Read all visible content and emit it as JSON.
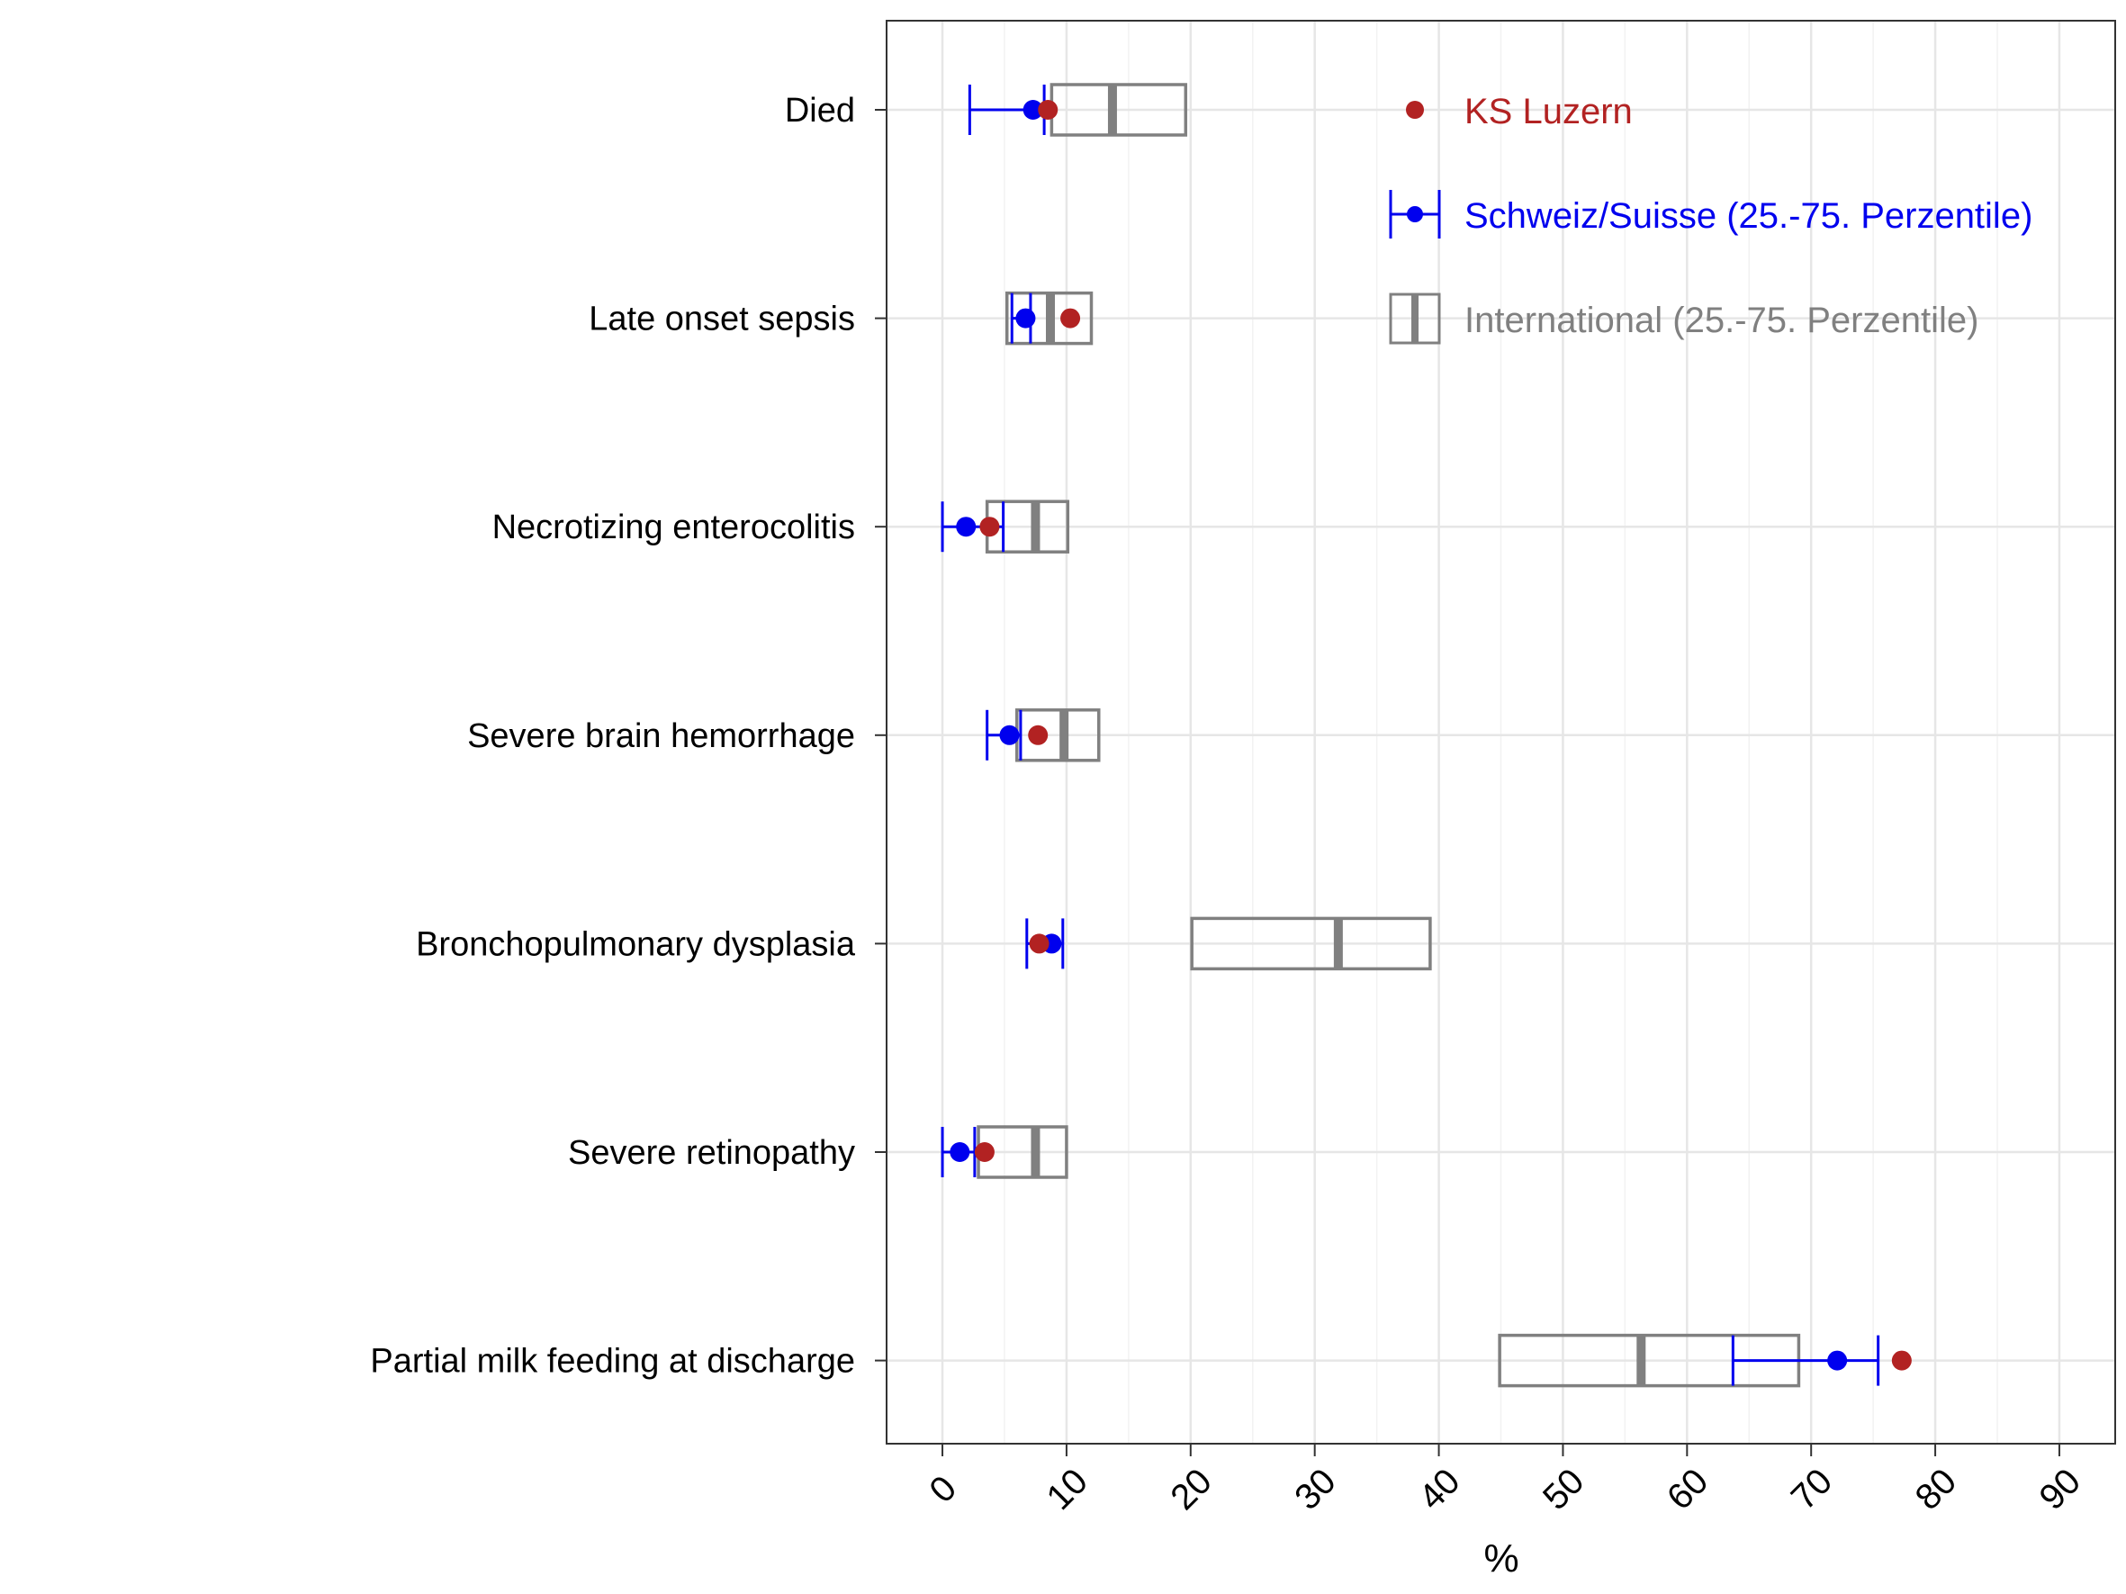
{
  "chart_data": {
    "type": "box",
    "xlabel": "%",
    "xlim": [
      -4.5,
      94.5
    ],
    "x_ticks": [
      "0",
      "10",
      "20",
      "30",
      "40",
      "50",
      "60",
      "70",
      "80",
      "90"
    ],
    "x_tick_values": [
      0,
      10,
      20,
      30,
      40,
      50,
      60,
      70,
      80,
      90
    ],
    "x_minor_values": [
      5,
      15,
      25,
      35,
      45,
      55,
      65,
      75,
      85
    ],
    "categories": [
      "Died",
      "Late onset sepsis",
      "Necrotizing enterocolitis",
      "Severe brain hemorrhage",
      "Bronchopulmonary dysplasia",
      "Severe retinopathy",
      "Partial milk feeding at discharge"
    ],
    "series": [
      {
        "name": "KS Luzern",
        "color": "#b22222",
        "values": [
          8.5,
          10.3,
          3.8,
          7.7,
          7.8,
          3.4,
          77.3
        ]
      },
      {
        "name": "Schweiz/Suisse (25.-75. Perzentile)",
        "color": "#0000ee",
        "median": [
          7.3,
          6.7,
          1.9,
          5.4,
          8.8,
          1.4,
          72.1
        ],
        "q1": [
          2.2,
          5.6,
          0.0,
          3.6,
          6.8,
          0.0,
          63.7
        ],
        "q3": [
          8.2,
          7.1,
          4.9,
          6.3,
          9.7,
          2.6,
          75.4
        ]
      },
      {
        "name": "International (25.-75. Perzentile)",
        "color": "#808080",
        "median": [
          13.7,
          8.7,
          7.5,
          9.8,
          31.9,
          7.5,
          56.3
        ],
        "q1": [
          8.8,
          5.2,
          3.6,
          6.0,
          20.1,
          2.9,
          44.9
        ],
        "q3": [
          19.6,
          12.0,
          10.1,
          12.6,
          39.3,
          10.0,
          69.0
        ]
      }
    ],
    "grid": true,
    "legend_position": "top-right inside"
  }
}
